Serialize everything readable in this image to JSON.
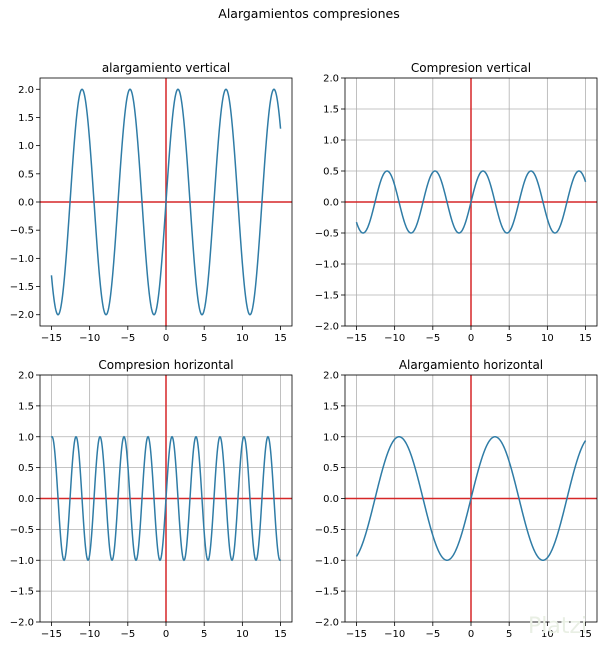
{
  "suptitle": "Alargamientos compresiones",
  "watermark_text": "Platzi",
  "colors": {
    "curve": "#2f7ca6",
    "axes_lines": "#d62728",
    "grid": "#b0b0b0",
    "frame": "#000000"
  },
  "chart_data": [
    {
      "type": "line",
      "title": "alargamiento vertical",
      "function": "2*sin(x)",
      "x_range": [
        -15,
        15
      ],
      "xlim": [
        -16.5,
        16.5
      ],
      "ylim": [
        -2.2,
        2.2
      ],
      "xticks": [
        -15,
        -10,
        -5,
        0,
        5,
        10,
        15
      ],
      "yticks": [
        -2.0,
        -1.5,
        -1.0,
        -0.5,
        0.0,
        0.5,
        1.0,
        1.5,
        2.0
      ],
      "amplitude": 2,
      "frequency": 1,
      "grid": false,
      "reference_lines": {
        "x": 0,
        "y": 0
      }
    },
    {
      "type": "line",
      "title": "Compresion vertical",
      "function": "0.5*sin(x)",
      "x_range": [
        -15,
        15
      ],
      "xlim": [
        -16.5,
        16.5
      ],
      "ylim": [
        -2.0,
        2.0
      ],
      "xticks": [
        -15,
        -10,
        -5,
        0,
        5,
        10,
        15
      ],
      "yticks": [
        -2.0,
        -1.5,
        -1.0,
        -0.5,
        0.0,
        0.5,
        1.0,
        1.5,
        2.0
      ],
      "amplitude": 0.5,
      "frequency": 1,
      "grid": true,
      "reference_lines": {
        "x": 0,
        "y": 0
      }
    },
    {
      "type": "line",
      "title": "Compresion horizontal",
      "function": "sin(2*x)",
      "x_range": [
        -15,
        15
      ],
      "xlim": [
        -16.5,
        16.5
      ],
      "ylim": [
        -2.0,
        2.0
      ],
      "xticks": [
        -15,
        -10,
        -5,
        0,
        5,
        10,
        15
      ],
      "yticks": [
        -2.0,
        -1.5,
        -1.0,
        -0.5,
        0.0,
        0.5,
        1.0,
        1.5,
        2.0
      ],
      "amplitude": 1,
      "frequency": 2,
      "grid": true,
      "reference_lines": {
        "x": 0,
        "y": 0
      }
    },
    {
      "type": "line",
      "title": "Alargamiento horizontal",
      "function": "sin(0.5*x)",
      "x_range": [
        -15,
        15
      ],
      "xlim": [
        -16.5,
        16.5
      ],
      "ylim": [
        -2.0,
        2.0
      ],
      "xticks": [
        -15,
        -10,
        -5,
        0,
        5,
        10,
        15
      ],
      "yticks": [
        -2.0,
        -1.5,
        -1.0,
        -0.5,
        0.0,
        0.5,
        1.0,
        1.5,
        2.0
      ],
      "amplitude": 1,
      "frequency": 0.5,
      "grid": true,
      "reference_lines": {
        "x": 0,
        "y": 0
      }
    }
  ]
}
